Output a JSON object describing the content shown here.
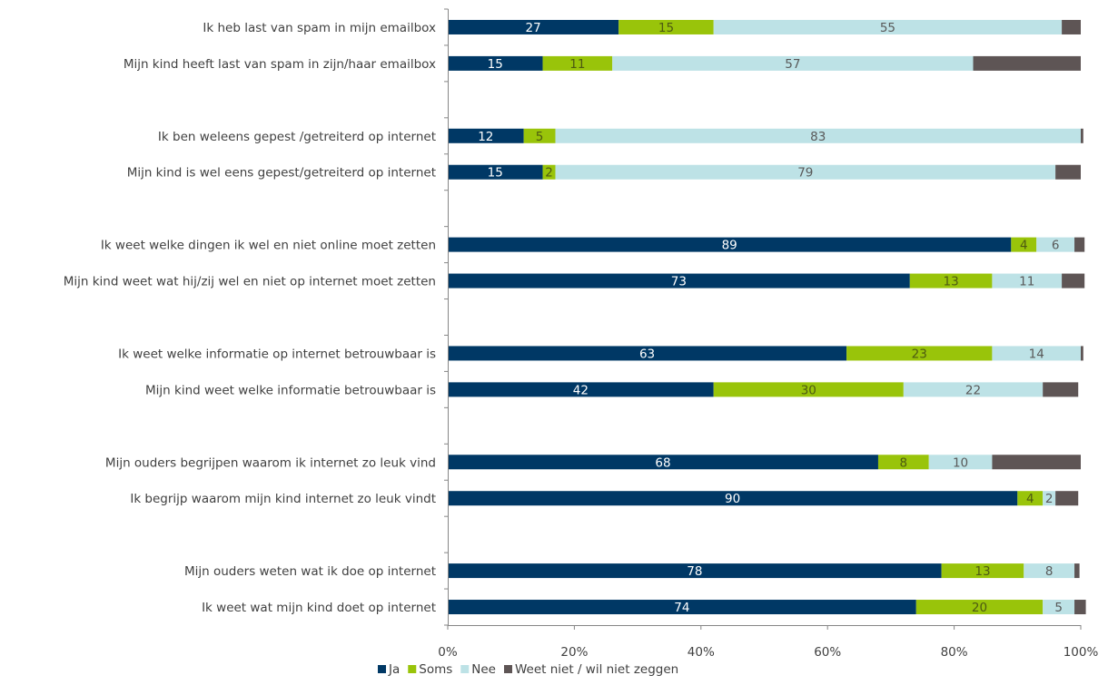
{
  "chart_data": {
    "type": "bar",
    "orientation": "horizontal",
    "stacked": "percent",
    "categories": [
      "Ik heb last van spam in mijn emailbox",
      "Mijn kind heeft last van spam in zijn/haar emailbox",
      "",
      "Ik ben weleens gepest /getreiterd op internet",
      "Mijn kind is wel eens gepest/getreiterd op internet",
      "",
      "Ik weet welke dingen ik wel en niet online moet zetten",
      "Mijn kind weet wat hij/zij wel en niet op internet moet zetten",
      "",
      "Ik weet welke informatie op internet betrouwbaar is",
      "Mijn kind weet welke informatie betrouwbaar is",
      "",
      "Mijn ouders begrijpen waarom ik internet  zo leuk vind",
      "Ik begrijp waarom mijn kind internet zo leuk vindt",
      "",
      "Mijn ouders weten wat ik doe op internet",
      "Ik weet wat mijn kind doet op internet"
    ],
    "series": [
      {
        "name": "Ja",
        "color": "#003865",
        "values": [
          27,
          15,
          null,
          12,
          15,
          null,
          89,
          73,
          null,
          63,
          42,
          null,
          68,
          90,
          null,
          78,
          74
        ]
      },
      {
        "name": "Soms",
        "color": "#99C40A",
        "values": [
          15,
          11,
          null,
          5,
          2,
          null,
          4,
          13,
          null,
          23,
          30,
          null,
          8,
          4,
          null,
          13,
          20
        ]
      },
      {
        "name": "Nee",
        "color": "#BDE2E6",
        "values": [
          55,
          57,
          null,
          83,
          79,
          null,
          6,
          11,
          null,
          14,
          22,
          null,
          10,
          2,
          null,
          8,
          5
        ]
      },
      {
        "name": "Weet niet / wil niet zeggen",
        "color": "#5E5555",
        "values": [
          3,
          17,
          null,
          0.4,
          4,
          null,
          1.6,
          3.6,
          null,
          0.4,
          5.6,
          null,
          14,
          3.6,
          null,
          0.8,
          1.8
        ]
      }
    ],
    "data_labels": {
      "Ja": [
        "27",
        "15",
        "",
        "12",
        "15",
        "",
        "89",
        "73",
        "",
        "63",
        "42",
        "",
        "68",
        "90",
        "",
        "78",
        "74"
      ],
      "Soms": [
        "15",
        "11",
        "",
        "5",
        "2",
        "",
        "4",
        "13",
        "",
        "23",
        "30",
        "",
        "8",
        "4",
        "",
        "13",
        "20"
      ],
      "Nee": [
        "55",
        "57",
        "",
        "83",
        "79",
        "",
        "6",
        "11",
        "",
        "14",
        "22",
        "",
        "10",
        "2",
        "",
        "8",
        "5"
      ],
      "Weet niet / wil niet zeggen": [
        "",
        "",
        "",
        "",
        "",
        "",
        "",
        "",
        "",
        "",
        "",
        "",
        "",
        "",
        "",
        "",
        ""
      ]
    },
    "data_label_colors": {
      "Ja": "#ffffff",
      "Soms": "#4d5a12",
      "Nee": "#595959",
      "Weet niet / wil niet zeggen": "#ffffff"
    },
    "xlim": [
      0,
      100
    ],
    "x_ticks": [
      "0%",
      "20%",
      "40%",
      "60%",
      "80%",
      "100%"
    ],
    "title": "",
    "xlabel": "",
    "ylabel": "",
    "grid": false,
    "legend_position": "bottom"
  }
}
